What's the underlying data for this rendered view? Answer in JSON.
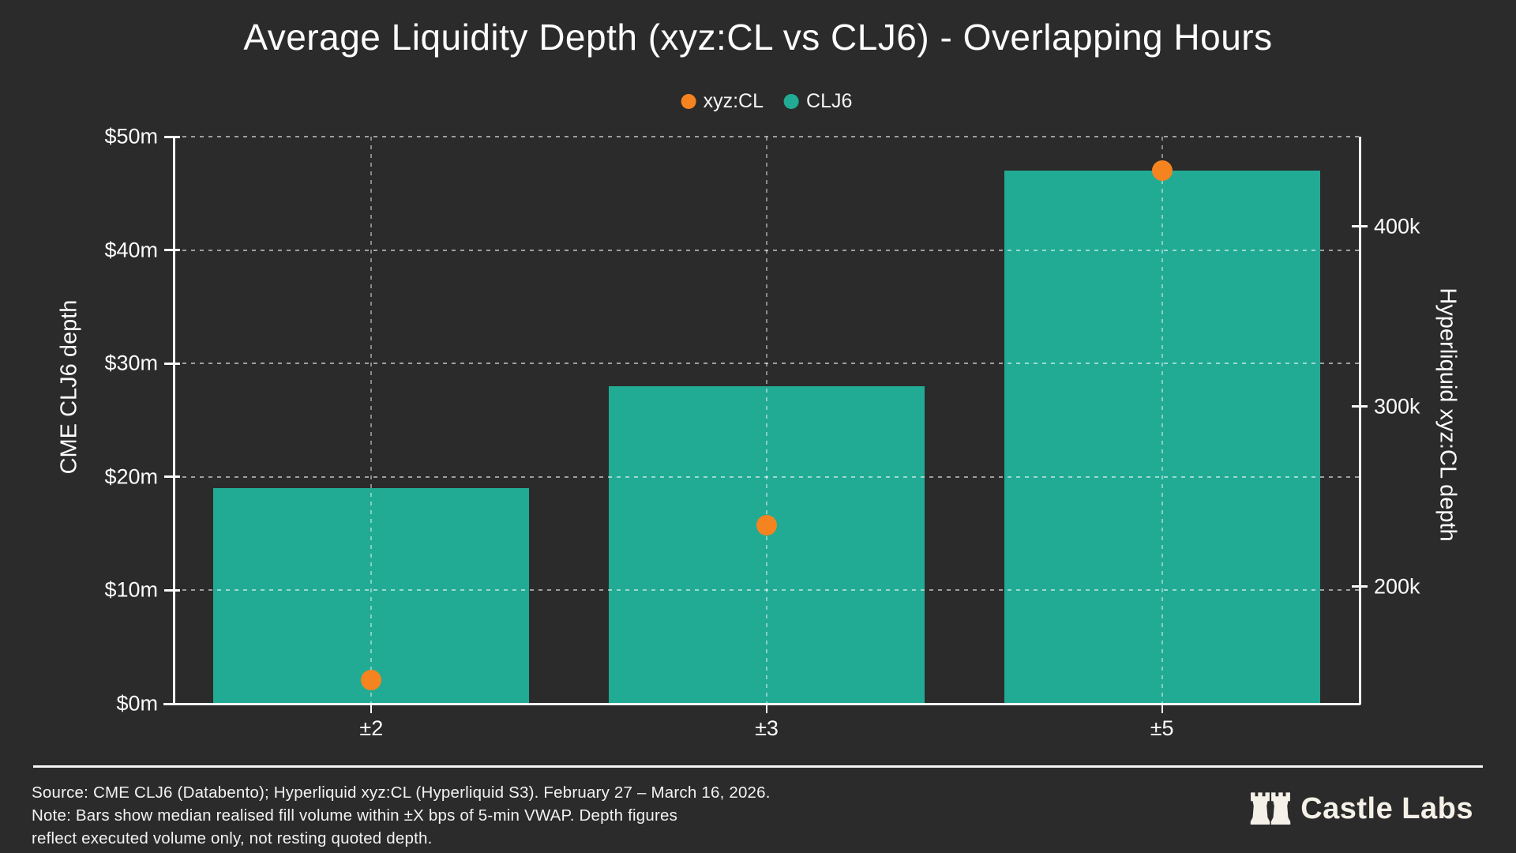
{
  "chart_data": {
    "type": "bar",
    "title": "Average Liquidity Depth (xyz:CL vs CLJ6) - Overlapping Hours",
    "categories": [
      "±2",
      "±3",
      "±5"
    ],
    "series": [
      {
        "name": "CLJ6",
        "mark": "bar",
        "axis": "left",
        "color": "#21ab94",
        "values": [
          19,
          28,
          47
        ],
        "unit": "$m"
      },
      {
        "name": "xyz:CL",
        "mark": "scatter",
        "axis": "right",
        "color": "#f5831f",
        "values": [
          148000,
          234000,
          431000
        ],
        "unit": "contracts"
      }
    ],
    "left_axis": {
      "label": "CME CLJ6 depth",
      "tick_labels": [
        "$0m",
        "$10m",
        "$20m",
        "$30m",
        "$40m",
        "$50m"
      ],
      "tick_values": [
        0,
        10,
        20,
        30,
        40,
        50
      ],
      "range": [
        0,
        50
      ]
    },
    "right_axis": {
      "label": "Hyperliquid xyz:CL depth",
      "tick_labels": [
        "200k",
        "300k",
        "400k"
      ],
      "tick_values": [
        200000,
        300000,
        400000
      ],
      "range": [
        135000,
        450000
      ]
    },
    "grid": "dashed, horizontal at left-axis ticks and vertical at category centers, drawn over bars",
    "legend_position": "top-center"
  },
  "legend": {
    "items": [
      {
        "label": "xyz:CL",
        "color": "#f5831f"
      },
      {
        "label": "CLJ6",
        "color": "#21ab94"
      }
    ]
  },
  "footer": {
    "source_line": "Source: CME CLJ6 (Databento); Hyperliquid xyz:CL (Hyperliquid S3). February 27 – March 16, 2026.",
    "note_line1": "Note: Bars show median realised fill volume within ±X bps of 5-min VWAP. Depth figures",
    "note_line2": "reflect executed volume only, not resting quoted depth.",
    "brand": "Castle Labs"
  },
  "colors": {
    "background": "#2b2b2b",
    "bar": "#21ab94",
    "dot": "#f5831f",
    "text": "#fdfdfd",
    "grid": "rgba(255,255,255,0.55)",
    "divider": "#f5f5f5"
  }
}
